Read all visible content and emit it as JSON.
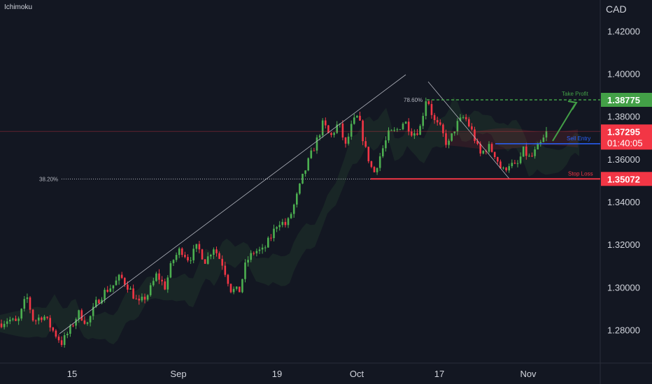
{
  "indicator_label": "Ichimoku",
  "currency_label": "CAD",
  "price_tags": {
    "take_profit": "1.38775",
    "current": "1.37295",
    "countdown": "01:40:05",
    "stop_loss": "1.35072"
  },
  "annotations": {
    "take_profit": "Take Profit",
    "sell_entry": "Sell Entry",
    "stop_loss": "Stop Loss",
    "fib_top": "78.60%",
    "fib_bottom": "38.20%"
  },
  "colors": {
    "background": "#131722",
    "up_candle": "#4caf50",
    "down_candle": "#f23645",
    "take_profit": "#43a047",
    "stop_loss": "#f23645",
    "sell_entry": "#2962ff",
    "current_price": "#f23645"
  },
  "chart_data": {
    "type": "candlestick",
    "ylim": [
      1.2645,
      1.4345
    ],
    "y_ticks": [
      "1.42000",
      "1.40000",
      "1.38000",
      "1.36000",
      "1.34000",
      "1.32000",
      "1.30000",
      "1.28000"
    ],
    "x_ticks": [
      "15",
      "Sep",
      "19",
      "Oct",
      "17",
      "Nov"
    ],
    "levels": [
      {
        "name": "Take Profit",
        "value": 1.38775
      },
      {
        "name": "Sell Entry",
        "value": 1.3672
      },
      {
        "name": "Stop Loss",
        "value": 1.35072
      },
      {
        "name": "Current",
        "value": 1.37295
      }
    ],
    "price_path": [
      [
        0,
        1.283
      ],
      [
        12,
        1.285
      ],
      [
        25,
        1.283
      ],
      [
        38,
        1.296
      ],
      [
        48,
        1.284
      ],
      [
        62,
        1.287
      ],
      [
        75,
        1.28
      ],
      [
        88,
        1.274
      ],
      [
        100,
        1.28
      ],
      [
        112,
        1.288
      ],
      [
        125,
        1.283
      ],
      [
        138,
        1.293
      ],
      [
        150,
        1.298
      ],
      [
        162,
        1.301
      ],
      [
        172,
        1.305
      ],
      [
        184,
        1.3
      ],
      [
        198,
        1.292
      ],
      [
        212,
        1.297
      ],
      [
        224,
        1.306
      ],
      [
        236,
        1.3
      ],
      [
        246,
        1.312
      ],
      [
        258,
        1.318
      ],
      [
        270,
        1.313
      ],
      [
        282,
        1.319
      ],
      [
        294,
        1.312
      ],
      [
        305,
        1.319
      ],
      [
        318,
        1.311
      ],
      [
        330,
        1.299
      ],
      [
        342,
        1.298
      ],
      [
        352,
        1.312
      ],
      [
        364,
        1.317
      ],
      [
        376,
        1.317
      ],
      [
        388,
        1.324
      ],
      [
        398,
        1.331
      ],
      [
        410,
        1.329
      ],
      [
        422,
        1.34
      ],
      [
        432,
        1.351
      ],
      [
        442,
        1.36
      ],
      [
        452,
        1.368
      ],
      [
        462,
        1.377
      ],
      [
        472,
        1.37
      ],
      [
        484,
        1.377
      ],
      [
        494,
        1.366
      ],
      [
        504,
        1.377
      ],
      [
        512,
        1.38
      ],
      [
        522,
        1.365
      ],
      [
        534,
        1.353
      ],
      [
        546,
        1.364
      ],
      [
        556,
        1.372
      ],
      [
        566,
        1.373
      ],
      [
        578,
        1.378
      ],
      [
        590,
        1.372
      ],
      [
        600,
        1.374
      ],
      [
        610,
        1.39
      ],
      [
        620,
        1.378
      ],
      [
        630,
        1.374
      ],
      [
        640,
        1.366
      ],
      [
        652,
        1.376
      ],
      [
        664,
        1.38
      ],
      [
        676,
        1.372
      ],
      [
        686,
        1.362
      ],
      [
        698,
        1.366
      ],
      [
        708,
        1.362
      ],
      [
        718,
        1.354
      ],
      [
        728,
        1.358
      ],
      [
        738,
        1.356
      ],
      [
        748,
        1.364
      ],
      [
        758,
        1.36
      ],
      [
        768,
        1.365
      ],
      [
        775,
        1.368
      ],
      [
        782,
        1.37295
      ]
    ]
  }
}
